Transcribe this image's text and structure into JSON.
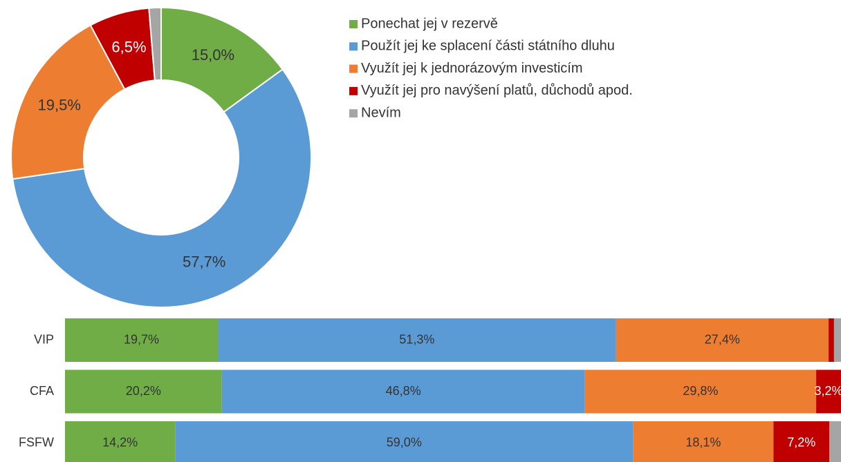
{
  "chart_data": [
    {
      "type": "pie",
      "donut": true,
      "categories": [
        "Ponechat jej v rezervě",
        "Použít jej ke splacení části státního dluhu",
        "Využít jej k jednorázovým investicím",
        "Využít jej pro navýšení platů, důchodů apod.",
        "Nevím"
      ],
      "values": [
        15.0,
        57.7,
        19.5,
        6.5,
        1.3
      ],
      "value_labels": [
        "15,0%",
        "57,7%",
        "19,5%",
        "6,5%",
        null
      ],
      "colors": [
        "#70ad47",
        "#5b9bd5",
        "#ed7d31",
        "#c00000",
        "#a5a5a5"
      ],
      "legend": "right"
    },
    {
      "type": "bar",
      "orientation": "horizontal",
      "stacked": true,
      "categories": [
        "VIP",
        "CFA",
        "FSFW"
      ],
      "series": [
        {
          "color": "#70ad47",
          "values": [
            19.7,
            20.2,
            14.2
          ],
          "value_labels": [
            "19,7%",
            "20,2%",
            "14,2%"
          ]
        },
        {
          "color": "#5b9bd5",
          "values": [
            51.3,
            46.8,
            59.0
          ],
          "value_labels": [
            "51,3%",
            "46,8%",
            "59,0%"
          ]
        },
        {
          "color": "#ed7d31",
          "values": [
            27.4,
            29.8,
            18.1
          ],
          "value_labels": [
            "27,4%",
            "29,8%",
            "18,1%"
          ]
        },
        {
          "color": "#c00000",
          "values": [
            0.7,
            3.2,
            7.2
          ],
          "value_labels": [
            null,
            "3,2%",
            "7,2%"
          ]
        },
        {
          "color": "#a5a5a5",
          "values": [
            0.9,
            0,
            1.5
          ],
          "value_labels": [
            null,
            null,
            null
          ]
        }
      ]
    }
  ]
}
